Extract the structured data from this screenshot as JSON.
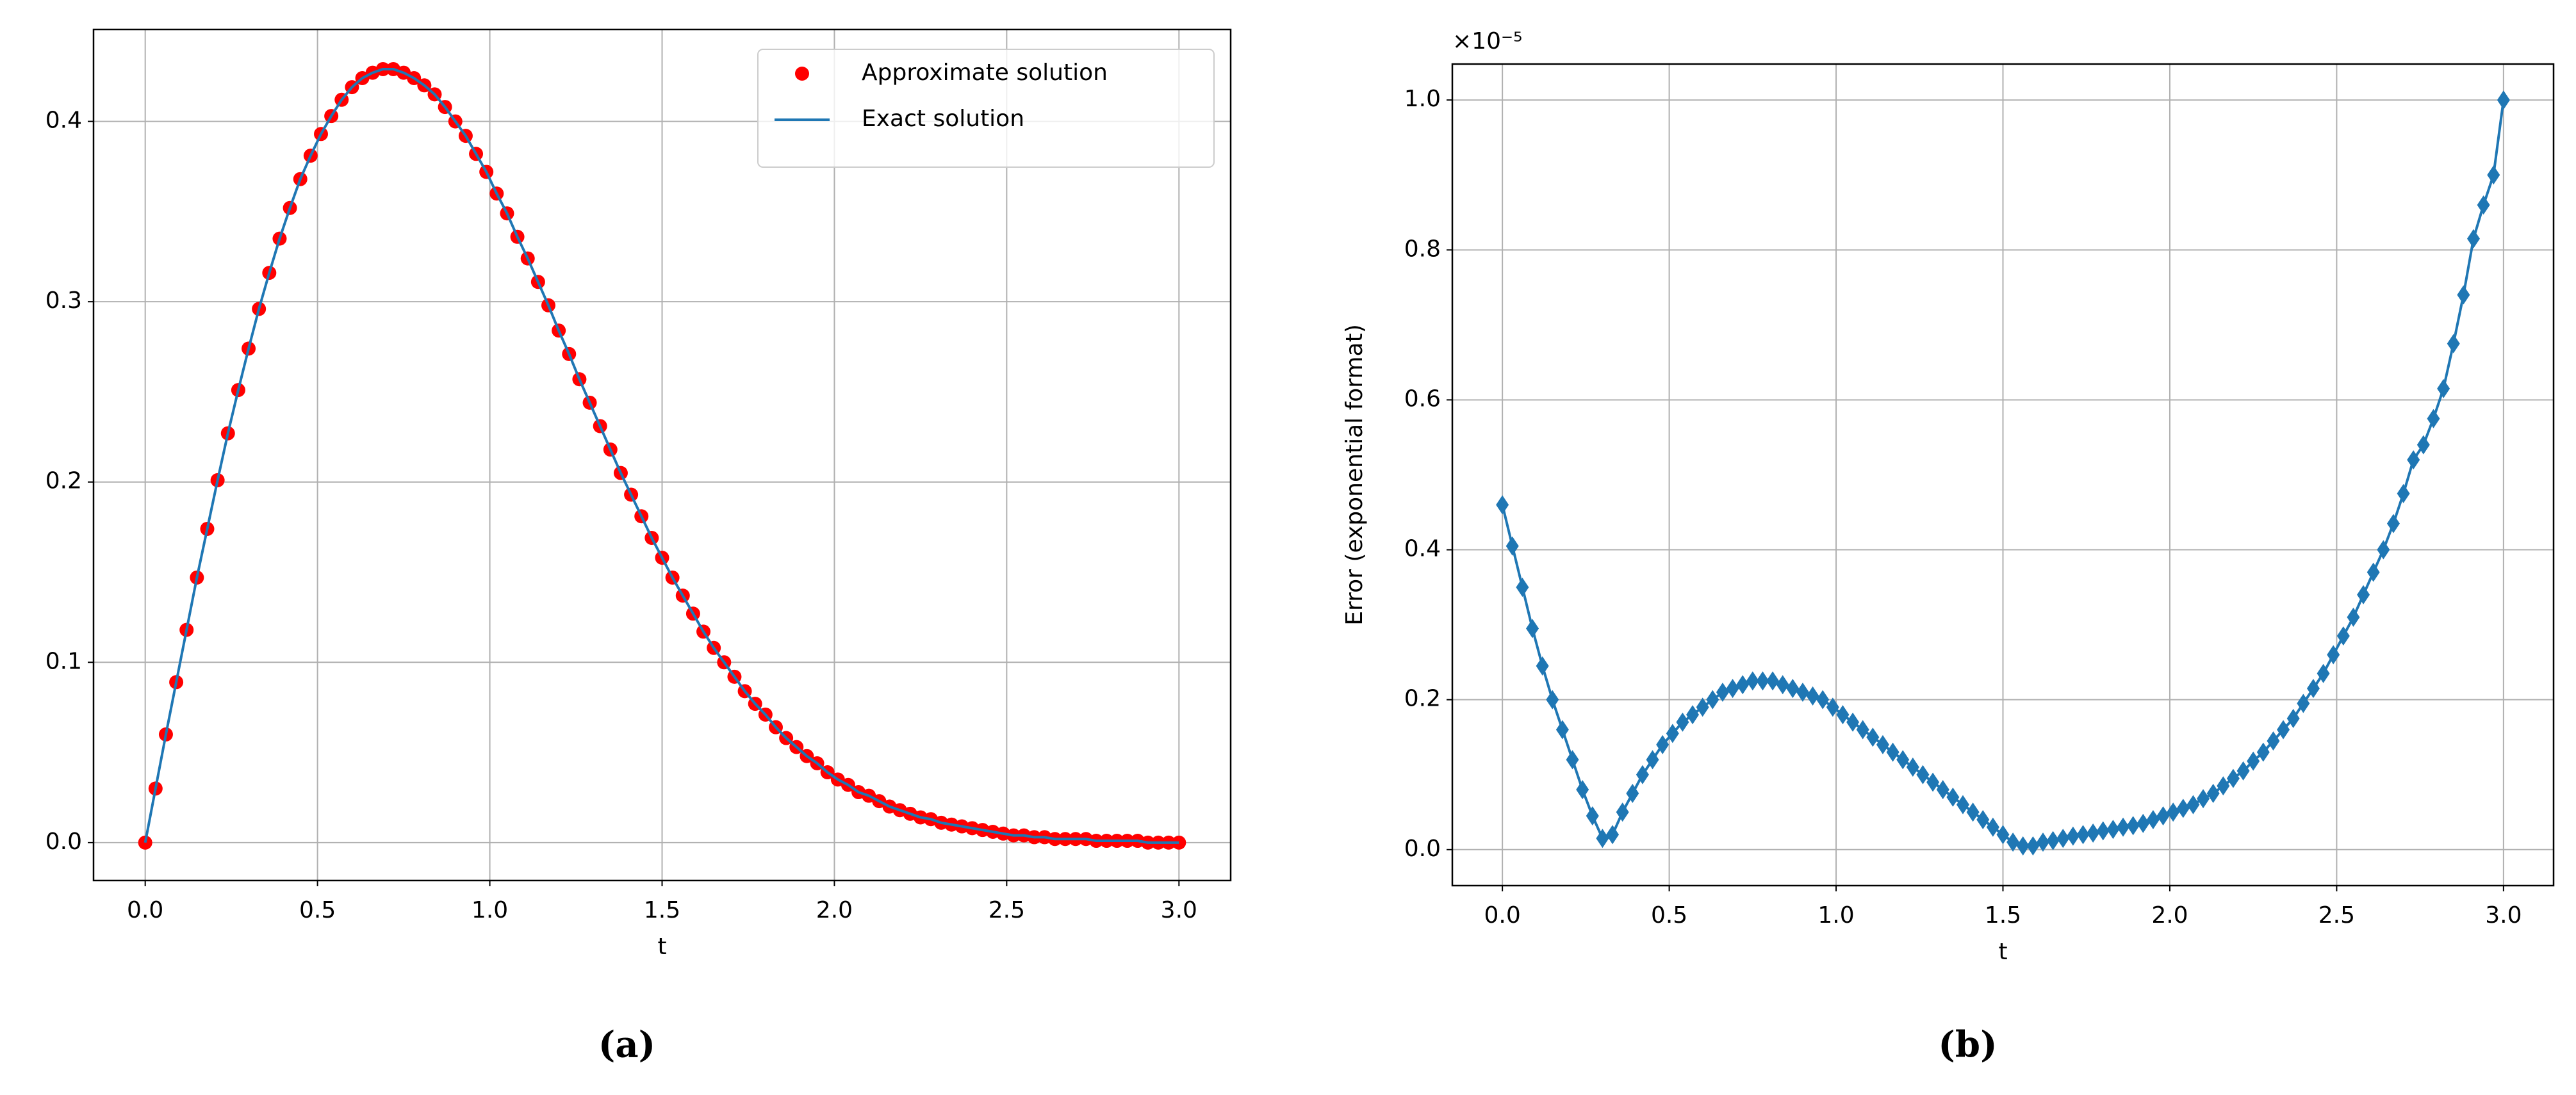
{
  "chart_data": [
    {
      "type": "line",
      "caption": "(a)",
      "xlabel": "t",
      "x": [
        0,
        0.03,
        0.06,
        0.09,
        0.12,
        0.15,
        0.18,
        0.21,
        0.24,
        0.27,
        0.3,
        0.33,
        0.36,
        0.39,
        0.42,
        0.45,
        0.48,
        0.51,
        0.54,
        0.57,
        0.6,
        0.63,
        0.66,
        0.69,
        0.72,
        0.75,
        0.78,
        0.81,
        0.84,
        0.87,
        0.9,
        0.93,
        0.96,
        0.99,
        1.02,
        1.05,
        1.08,
        1.11,
        1.14,
        1.17,
        1.2,
        1.23,
        1.26,
        1.29,
        1.32,
        1.35,
        1.38,
        1.41,
        1.44,
        1.47,
        1.5,
        1.53,
        1.56,
        1.59,
        1.62,
        1.65,
        1.68,
        1.71,
        1.74,
        1.77,
        1.8,
        1.83,
        1.86,
        1.89,
        1.92,
        1.95,
        1.98,
        2.01,
        2.04,
        2.07,
        2.1,
        2.13,
        2.16,
        2.19,
        2.22,
        2.25,
        2.28,
        2.31,
        2.34,
        2.37,
        2.4,
        2.43,
        2.46,
        2.49,
        2.52,
        2.55,
        2.58,
        2.61,
        2.64,
        2.67,
        2.7,
        2.73,
        2.76,
        2.79,
        2.82,
        2.85,
        2.88,
        2.91,
        2.94,
        2.97,
        3.0
      ],
      "series": [
        {
          "name": "Approximate solution",
          "color": "#ff0000",
          "marker": "circle",
          "line": false,
          "values": [
            0,
            0.03,
            0.06,
            0.089,
            0.118,
            0.147,
            0.174,
            0.201,
            0.227,
            0.251,
            0.274,
            0.296,
            0.316,
            0.335,
            0.352,
            0.368,
            0.381,
            0.393,
            0.403,
            0.412,
            0.419,
            0.424,
            0.427,
            0.429,
            0.429,
            0.427,
            0.424,
            0.42,
            0.415,
            0.408,
            0.4,
            0.392,
            0.382,
            0.372,
            0.36,
            0.349,
            0.336,
            0.324,
            0.311,
            0.298,
            0.284,
            0.271,
            0.257,
            0.244,
            0.231,
            0.218,
            0.205,
            0.193,
            0.181,
            0.169,
            0.158,
            0.147,
            0.137,
            0.127,
            0.117,
            0.108,
            0.1,
            0.092,
            0.084,
            0.077,
            0.071,
            0.064,
            0.058,
            0.053,
            0.048,
            0.044,
            0.039,
            0.035,
            0.032,
            0.028,
            0.026,
            0.023,
            0.02,
            0.018,
            0.016,
            0.014,
            0.013,
            0.011,
            0.01,
            0.009,
            0.008,
            0.007,
            0.006,
            0.005,
            0.004,
            0.004,
            0.003,
            0.003,
            0.002,
            0.002,
            0.002,
            0.002,
            0.001,
            0.001,
            0.001,
            0.001,
            0.001,
            0,
            0,
            0,
            0
          ]
        },
        {
          "name": "Exact solution",
          "color": "#1f77b4",
          "line": true,
          "values": [
            0,
            0.03,
            0.06,
            0.089,
            0.118,
            0.147,
            0.174,
            0.201,
            0.227,
            0.251,
            0.274,
            0.296,
            0.316,
            0.335,
            0.352,
            0.368,
            0.381,
            0.393,
            0.403,
            0.412,
            0.419,
            0.424,
            0.427,
            0.429,
            0.429,
            0.427,
            0.424,
            0.42,
            0.415,
            0.408,
            0.4,
            0.392,
            0.382,
            0.372,
            0.36,
            0.349,
            0.336,
            0.324,
            0.311,
            0.298,
            0.284,
            0.271,
            0.257,
            0.244,
            0.231,
            0.218,
            0.205,
            0.193,
            0.181,
            0.169,
            0.158,
            0.147,
            0.137,
            0.127,
            0.117,
            0.108,
            0.1,
            0.092,
            0.084,
            0.077,
            0.071,
            0.064,
            0.058,
            0.053,
            0.048,
            0.044,
            0.039,
            0.035,
            0.032,
            0.028,
            0.026,
            0.023,
            0.02,
            0.018,
            0.016,
            0.014,
            0.013,
            0.011,
            0.01,
            0.009,
            0.008,
            0.007,
            0.006,
            0.005,
            0.004,
            0.004,
            0.003,
            0.003,
            0.002,
            0.002,
            0.002,
            0.002,
            0.001,
            0.001,
            0.001,
            0.001,
            0.001,
            0,
            0,
            0,
            0
          ]
        }
      ],
      "xlim": [
        -0.15,
        3.15
      ],
      "ylim": [
        -0.021,
        0.451
      ],
      "xticks": [
        {
          "value": 0,
          "label": "0.0"
        },
        {
          "value": 0.5,
          "label": "0.5"
        },
        {
          "value": 1,
          "label": "1.0"
        },
        {
          "value": 1.5,
          "label": "1.5"
        },
        {
          "value": 2,
          "label": "2.0"
        },
        {
          "value": 2.5,
          "label": "2.5"
        },
        {
          "value": 3,
          "label": "3.0"
        }
      ],
      "yticks": [
        {
          "value": 0,
          "label": "0.0"
        },
        0.1,
        0.2,
        0.3,
        0.4
      ],
      "grid": true,
      "legend": "upper right"
    },
    {
      "type": "line",
      "caption": "(b)",
      "xlabel": "t",
      "ylabel": "Error (exponential format)",
      "offset_text": "×10⁻⁵",
      "x": [
        0,
        0.03,
        0.06,
        0.09,
        0.12,
        0.15,
        0.18,
        0.21,
        0.24,
        0.27,
        0.3,
        0.33,
        0.36,
        0.39,
        0.42,
        0.45,
        0.48,
        0.51,
        0.54,
        0.57,
        0.6,
        0.63,
        0.66,
        0.69,
        0.72,
        0.75,
        0.78,
        0.81,
        0.84,
        0.87,
        0.9,
        0.93,
        0.96,
        0.99,
        1.02,
        1.05,
        1.08,
        1.11,
        1.14,
        1.17,
        1.2,
        1.23,
        1.26,
        1.29,
        1.32,
        1.35,
        1.38,
        1.41,
        1.44,
        1.47,
        1.5,
        1.53,
        1.56,
        1.59,
        1.62,
        1.65,
        1.68,
        1.71,
        1.74,
        1.77,
        1.8,
        1.83,
        1.86,
        1.89,
        1.92,
        1.95,
        1.98,
        2.01,
        2.04,
        2.07,
        2.1,
        2.13,
        2.16,
        2.19,
        2.22,
        2.25,
        2.28,
        2.31,
        2.34,
        2.37,
        2.4,
        2.43,
        2.46,
        2.49,
        2.52,
        2.55,
        2.58,
        2.61,
        2.64,
        2.67,
        2.7,
        2.73,
        2.76,
        2.79,
        2.82,
        2.85,
        2.88,
        2.91,
        2.94,
        2.97,
        3.0
      ],
      "series": [
        {
          "color": "#1f77b4",
          "marker": "diamond",
          "line": true,
          "values": [
            0.46,
            0.405,
            0.35,
            0.295,
            0.245,
            0.2,
            0.16,
            0.12,
            0.08,
            0.045,
            0.015,
            0.02,
            0.05,
            0.075,
            0.1,
            0.12,
            0.14,
            0.155,
            0.17,
            0.18,
            0.19,
            0.2,
            0.21,
            0.215,
            0.22,
            0.225,
            0.225,
            0.225,
            0.22,
            0.215,
            0.21,
            0.205,
            0.2,
            0.19,
            0.18,
            0.17,
            0.16,
            0.15,
            0.14,
            0.13,
            0.12,
            0.11,
            0.1,
            0.09,
            0.08,
            0.07,
            0.06,
            0.05,
            0.04,
            0.03,
            0.02,
            0.01,
            0.005,
            0.005,
            0.01,
            0.012,
            0.015,
            0.018,
            0.02,
            0.022,
            0.025,
            0.027,
            0.03,
            0.032,
            0.035,
            0.04,
            0.045,
            0.05,
            0.055,
            0.06,
            0.068,
            0.075,
            0.085,
            0.095,
            0.105,
            0.118,
            0.13,
            0.145,
            0.16,
            0.175,
            0.195,
            0.215,
            0.235,
            0.26,
            0.285,
            0.31,
            0.34,
            0.37,
            0.4,
            0.435,
            0.475,
            0.52,
            0.54,
            0.575,
            0.615,
            0.675,
            0.74,
            0.815,
            0.86,
            0.9,
            1.0
          ]
        }
      ],
      "xlim": [
        -0.15,
        3.15
      ],
      "ylim": [
        -0.048,
        1.048
      ],
      "xticks": [
        {
          "value": 0,
          "label": "0.0"
        },
        {
          "value": 0.5,
          "label": "0.5"
        },
        {
          "value": 1,
          "label": "1.0"
        },
        {
          "value": 1.5,
          "label": "1.5"
        },
        {
          "value": 2,
          "label": "2.0"
        },
        {
          "value": 2.5,
          "label": "2.5"
        },
        {
          "value": 3,
          "label": "3.0"
        }
      ],
      "yticks": [
        {
          "value": 0,
          "label": "0.0"
        },
        0.2,
        0.4,
        0.6,
        0.8,
        {
          "value": 1,
          "label": "1.0"
        }
      ],
      "grid": true
    }
  ]
}
